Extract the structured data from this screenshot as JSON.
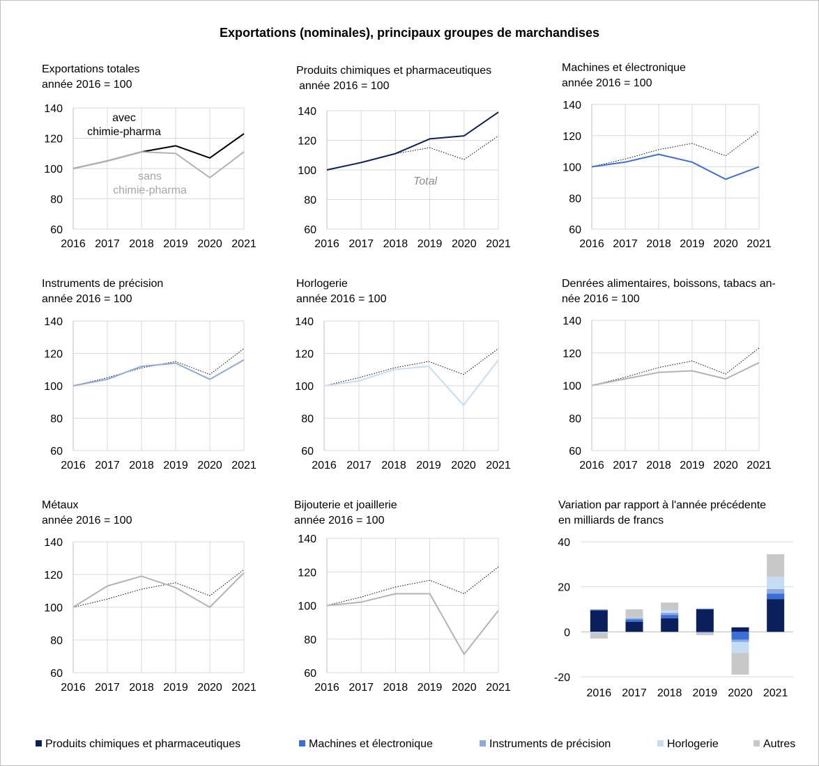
{
  "title": "Exportations (nominales), principaux groupes de marchandises",
  "colors": {
    "total": "#000000",
    "dotted": "#000000",
    "sans": "#b3b3b3",
    "chem": "#0a1f5c",
    "mach": "#3b6fd8",
    "prec": "#8ea9dc",
    "horl": "#c5ddf3",
    "autres": "#c8c8c8",
    "grid": "#d9d9d9"
  },
  "annotations": {
    "avec": "avec",
    "chimie1": "chimie-pharma",
    "sans": "sans",
    "chimie2": "chimie-pharma",
    "total": "Total"
  },
  "legend": [
    {
      "label": "Produits chimiques et pharmaceutiques",
      "color": "#0a1f5c"
    },
    {
      "label": "Machines et électronique",
      "color": "#3b6fd8"
    },
    {
      "label": "Instruments de précision",
      "color": "#8ea9dc"
    },
    {
      "label": "Horlogerie",
      "color": "#c5ddf3"
    },
    {
      "label": "Autres",
      "color": "#c8c8c8"
    }
  ],
  "chart_data": [
    {
      "type": "line",
      "title": "Exportations totales",
      "subtitle": "année 2016 = 100",
      "x": [
        "2016",
        "2017",
        "2018",
        "2019",
        "2020",
        "2021"
      ],
      "ylim": [
        60,
        140
      ],
      "yticks": [
        60,
        80,
        100,
        120,
        140
      ],
      "series": [
        {
          "name": "avec chimie-pharma",
          "values": [
            100,
            105,
            111,
            115,
            107,
            123
          ],
          "color": "#000000",
          "style": "solid"
        },
        {
          "name": "sans chimie-pharma",
          "values": [
            100,
            105,
            111,
            110,
            94,
            111
          ],
          "color": "#b3b3b3",
          "style": "solid"
        }
      ]
    },
    {
      "type": "line",
      "title": "Produits chimiques et pharmaceutiques",
      "subtitle": "année 2016 = 100",
      "x": [
        "2016",
        "2017",
        "2018",
        "2019",
        "2020",
        "2021"
      ],
      "ylim": [
        60,
        140
      ],
      "yticks": [
        60,
        80,
        100,
        120,
        140
      ],
      "series": [
        {
          "name": "Total",
          "values": [
            100,
            105,
            111,
            115,
            107,
            123
          ],
          "color": "#000000",
          "style": "dotted"
        },
        {
          "values": [
            100,
            105,
            111,
            121,
            123,
            139
          ],
          "color": "#0a1f5c",
          "style": "solid"
        }
      ]
    },
    {
      "type": "line",
      "title": "Machines et électronique",
      "subtitle": "année 2016 = 100",
      "x": [
        "2016",
        "2017",
        "2018",
        "2019",
        "2020",
        "2021"
      ],
      "ylim": [
        60,
        140
      ],
      "yticks": [
        60,
        80,
        100,
        120,
        140
      ],
      "series": [
        {
          "values": [
            100,
            105,
            111,
            115,
            107,
            123
          ],
          "color": "#000000",
          "style": "dotted"
        },
        {
          "values": [
            100,
            103,
            108,
            103,
            92,
            100
          ],
          "color": "#3b6fd8",
          "style": "solid"
        }
      ]
    },
    {
      "type": "line",
      "title": "Instruments de précision",
      "subtitle": "année 2016 = 100",
      "x": [
        "2016",
        "2017",
        "2018",
        "2019",
        "2020",
        "2021"
      ],
      "ylim": [
        60,
        140
      ],
      "yticks": [
        60,
        80,
        100,
        120,
        140
      ],
      "series": [
        {
          "values": [
            100,
            105,
            111,
            115,
            107,
            123
          ],
          "color": "#000000",
          "style": "dotted"
        },
        {
          "values": [
            100,
            104,
            112,
            114,
            104,
            116
          ],
          "color": "#8ea9dc",
          "style": "solid"
        }
      ]
    },
    {
      "type": "line",
      "title": "Horlogerie",
      "subtitle": "année 2016 = 100",
      "x": [
        "2016",
        "2017",
        "2018",
        "2019",
        "2020",
        "2021"
      ],
      "ylim": [
        60,
        140
      ],
      "yticks": [
        60,
        80,
        100,
        120,
        140
      ],
      "series": [
        {
          "values": [
            100,
            105,
            111,
            115,
            107,
            123
          ],
          "color": "#000000",
          "style": "dotted"
        },
        {
          "values": [
            100,
            103,
            110,
            112,
            88,
            116
          ],
          "color": "#c5ddf3",
          "style": "solid"
        }
      ]
    },
    {
      "type": "line",
      "title": "Denrées alimentaires, boissons, tabacs an-",
      "subtitle": "née 2016 = 100",
      "x": [
        "2016",
        "2017",
        "2018",
        "2019",
        "2020",
        "2021"
      ],
      "ylim": [
        60,
        140
      ],
      "yticks": [
        60,
        80,
        100,
        120,
        140
      ],
      "series": [
        {
          "values": [
            100,
            105,
            111,
            115,
            107,
            123
          ],
          "color": "#000000",
          "style": "dotted"
        },
        {
          "values": [
            100,
            104,
            108,
            109,
            104,
            114
          ],
          "color": "#b3b3b3",
          "style": "solid"
        }
      ]
    },
    {
      "type": "line",
      "title": "Métaux",
      "subtitle": "année 2016 = 100",
      "x": [
        "2016",
        "2017",
        "2018",
        "2019",
        "2020",
        "2021"
      ],
      "ylim": [
        60,
        140
      ],
      "yticks": [
        60,
        80,
        100,
        120,
        140
      ],
      "series": [
        {
          "values": [
            100,
            105,
            111,
            115,
            107,
            123
          ],
          "color": "#000000",
          "style": "dotted"
        },
        {
          "values": [
            100,
            113,
            119,
            112,
            100,
            121
          ],
          "color": "#b3b3b3",
          "style": "solid"
        }
      ]
    },
    {
      "type": "line",
      "title": "Bijouterie et joaillerie",
      "subtitle": "année 2016 = 100",
      "x": [
        "2016",
        "2017",
        "2018",
        "2019",
        "2020",
        "2021"
      ],
      "ylim": [
        60,
        140
      ],
      "yticks": [
        60,
        80,
        100,
        120,
        140
      ],
      "series": [
        {
          "values": [
            100,
            105,
            111,
            115,
            107,
            123
          ],
          "color": "#000000",
          "style": "dotted"
        },
        {
          "values": [
            100,
            102,
            107,
            107,
            71,
            97
          ],
          "color": "#b3b3b3",
          "style": "solid"
        }
      ]
    },
    {
      "type": "bar",
      "stacked": true,
      "title": "Variation par rapport à l'année précédente",
      "subtitle": "en milliards de francs",
      "categories": [
        "2016",
        "2017",
        "2018",
        "2019",
        "2020",
        "2021"
      ],
      "ylim": [
        -20,
        40
      ],
      "yticks": [
        -20,
        0,
        20,
        40
      ],
      "series": [
        {
          "name": "Produits chimiques et pharmaceutiques",
          "color": "#0a1f5c",
          "values": [
            9.5,
            4.5,
            6.0,
            10.0,
            2.0,
            14.5
          ]
        },
        {
          "name": "Machines et électronique",
          "color": "#3b6fd8",
          "values": [
            0.3,
            1.0,
            1.5,
            -0.3,
            -3.5,
            2.5
          ]
        },
        {
          "name": "Instruments de précision",
          "color": "#8ea9dc",
          "values": [
            0.2,
            0.7,
            1.0,
            0.3,
            -1.0,
            2.0
          ]
        },
        {
          "name": "Horlogerie",
          "color": "#c5ddf3",
          "values": [
            -0.5,
            0.3,
            1.0,
            0.2,
            -4.8,
            5.5
          ]
        },
        {
          "name": "Autres",
          "color": "#c8c8c8",
          "values": [
            -2.5,
            3.5,
            3.5,
            -1.2,
            -9.7,
            10.0
          ]
        }
      ]
    }
  ]
}
